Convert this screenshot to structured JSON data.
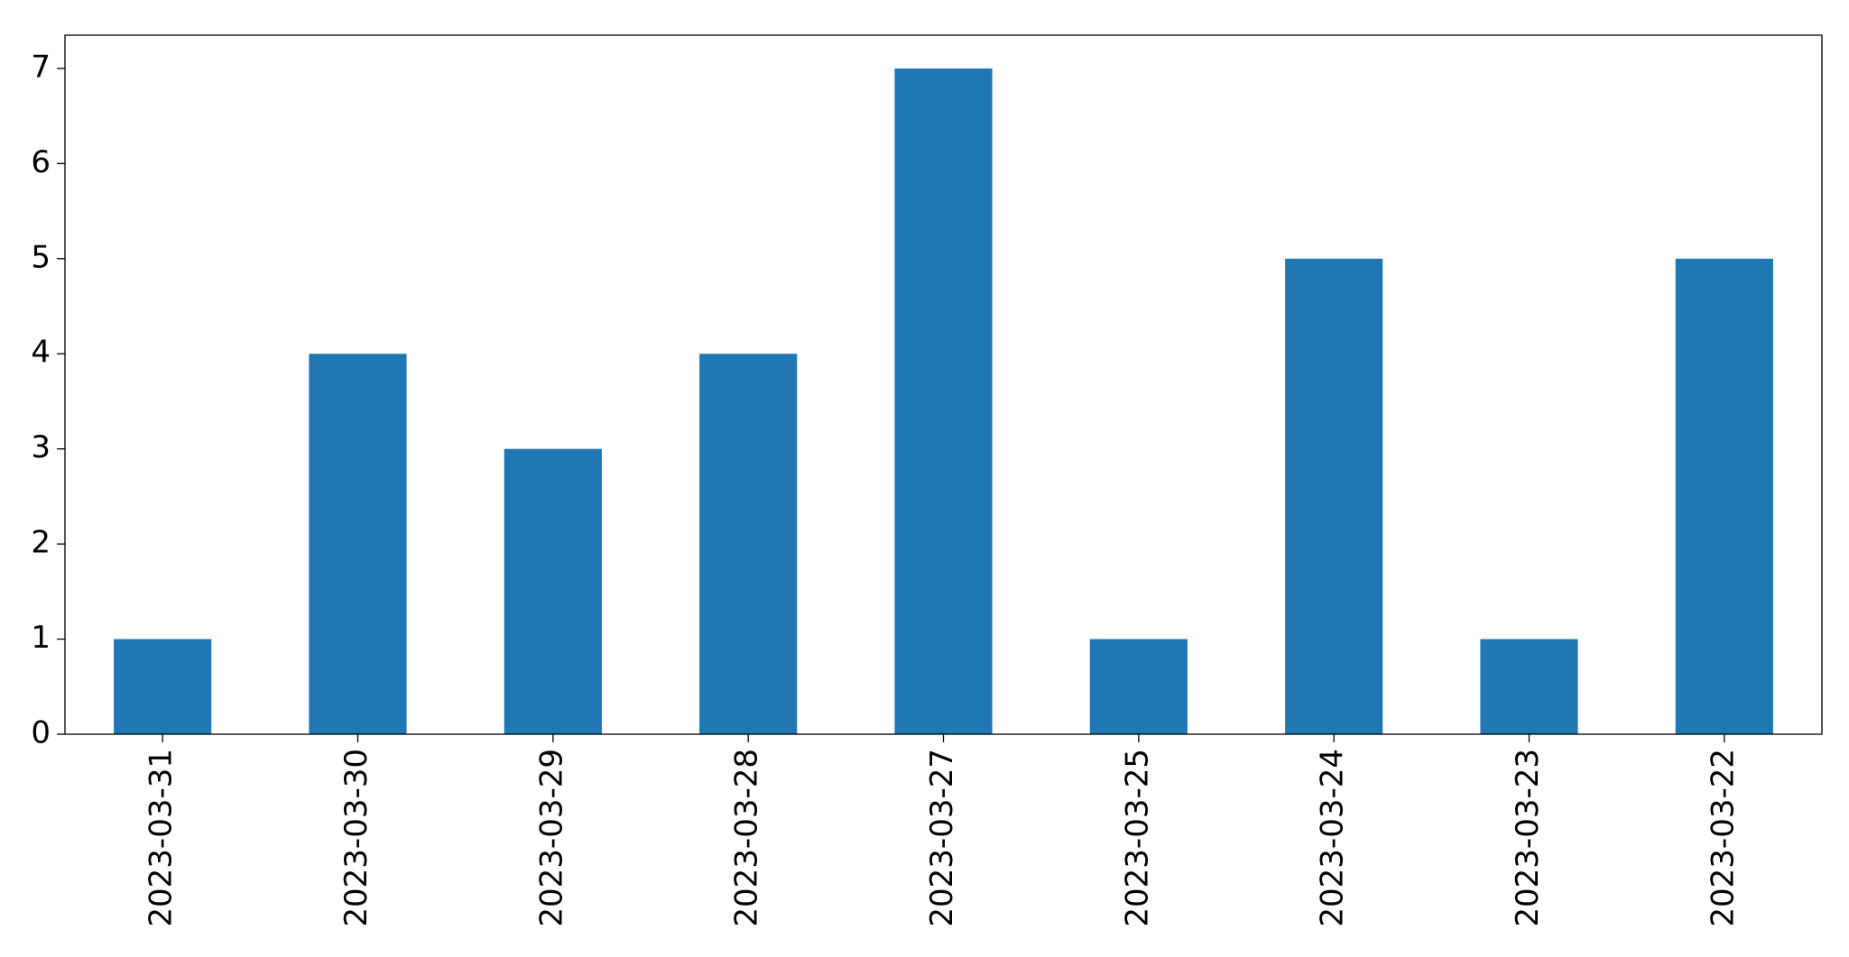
{
  "chart_data": {
    "type": "bar",
    "categories": [
      "2023-03-31",
      "2023-03-30",
      "2023-03-29",
      "2023-03-28",
      "2023-03-27",
      "2023-03-25",
      "2023-03-24",
      "2023-03-23",
      "2023-03-22"
    ],
    "values": [
      1,
      4,
      3,
      4,
      7,
      1,
      5,
      1,
      5
    ],
    "color": "#1f77b4",
    "ylim": [
      0,
      7.35
    ],
    "yticks": [
      0,
      1,
      2,
      3,
      4,
      5,
      6,
      7
    ],
    "grid": false
  }
}
